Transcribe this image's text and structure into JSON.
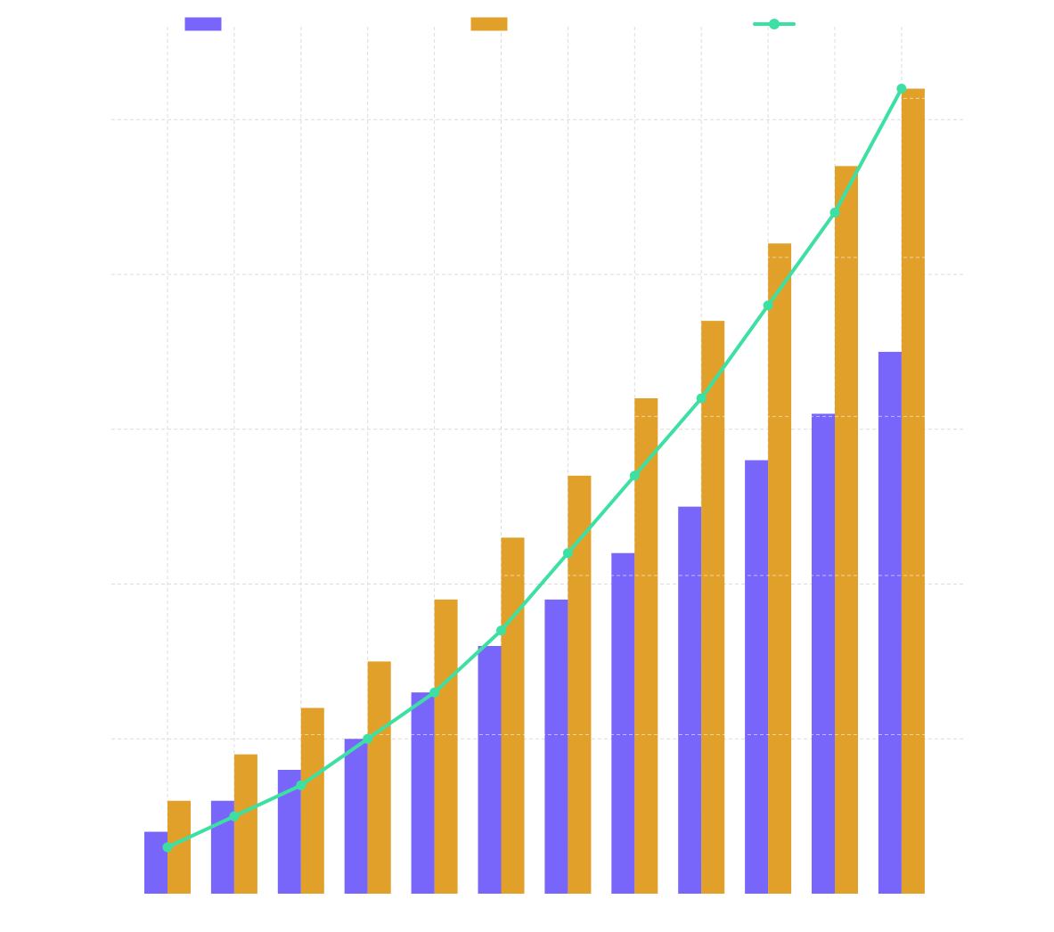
{
  "chart_data": {
    "type": "bar",
    "categories": [
      "",
      "",
      "",
      "",
      "",
      "",
      "",
      "",
      "",
      "",
      "",
      ""
    ],
    "series": [
      {
        "kind": "bar",
        "color": "#7866fb",
        "values": [
          4,
          6,
          8,
          10,
          13,
          16,
          19,
          22,
          25,
          28,
          31,
          35
        ]
      },
      {
        "kind": "bar",
        "color": "#e0a02a",
        "values": [
          6,
          9,
          12,
          15,
          19,
          23,
          27,
          32,
          37,
          42,
          47,
          52
        ]
      },
      {
        "kind": "line",
        "color": "#3de0a3",
        "values": [
          3,
          5,
          7,
          10,
          13,
          17,
          22,
          27,
          32,
          38,
          44,
          52
        ]
      }
    ],
    "ylim": [
      0,
      56
    ],
    "yticks": [
      10,
      20,
      30,
      40,
      50
    ],
    "grid": true,
    "legend": "top"
  }
}
